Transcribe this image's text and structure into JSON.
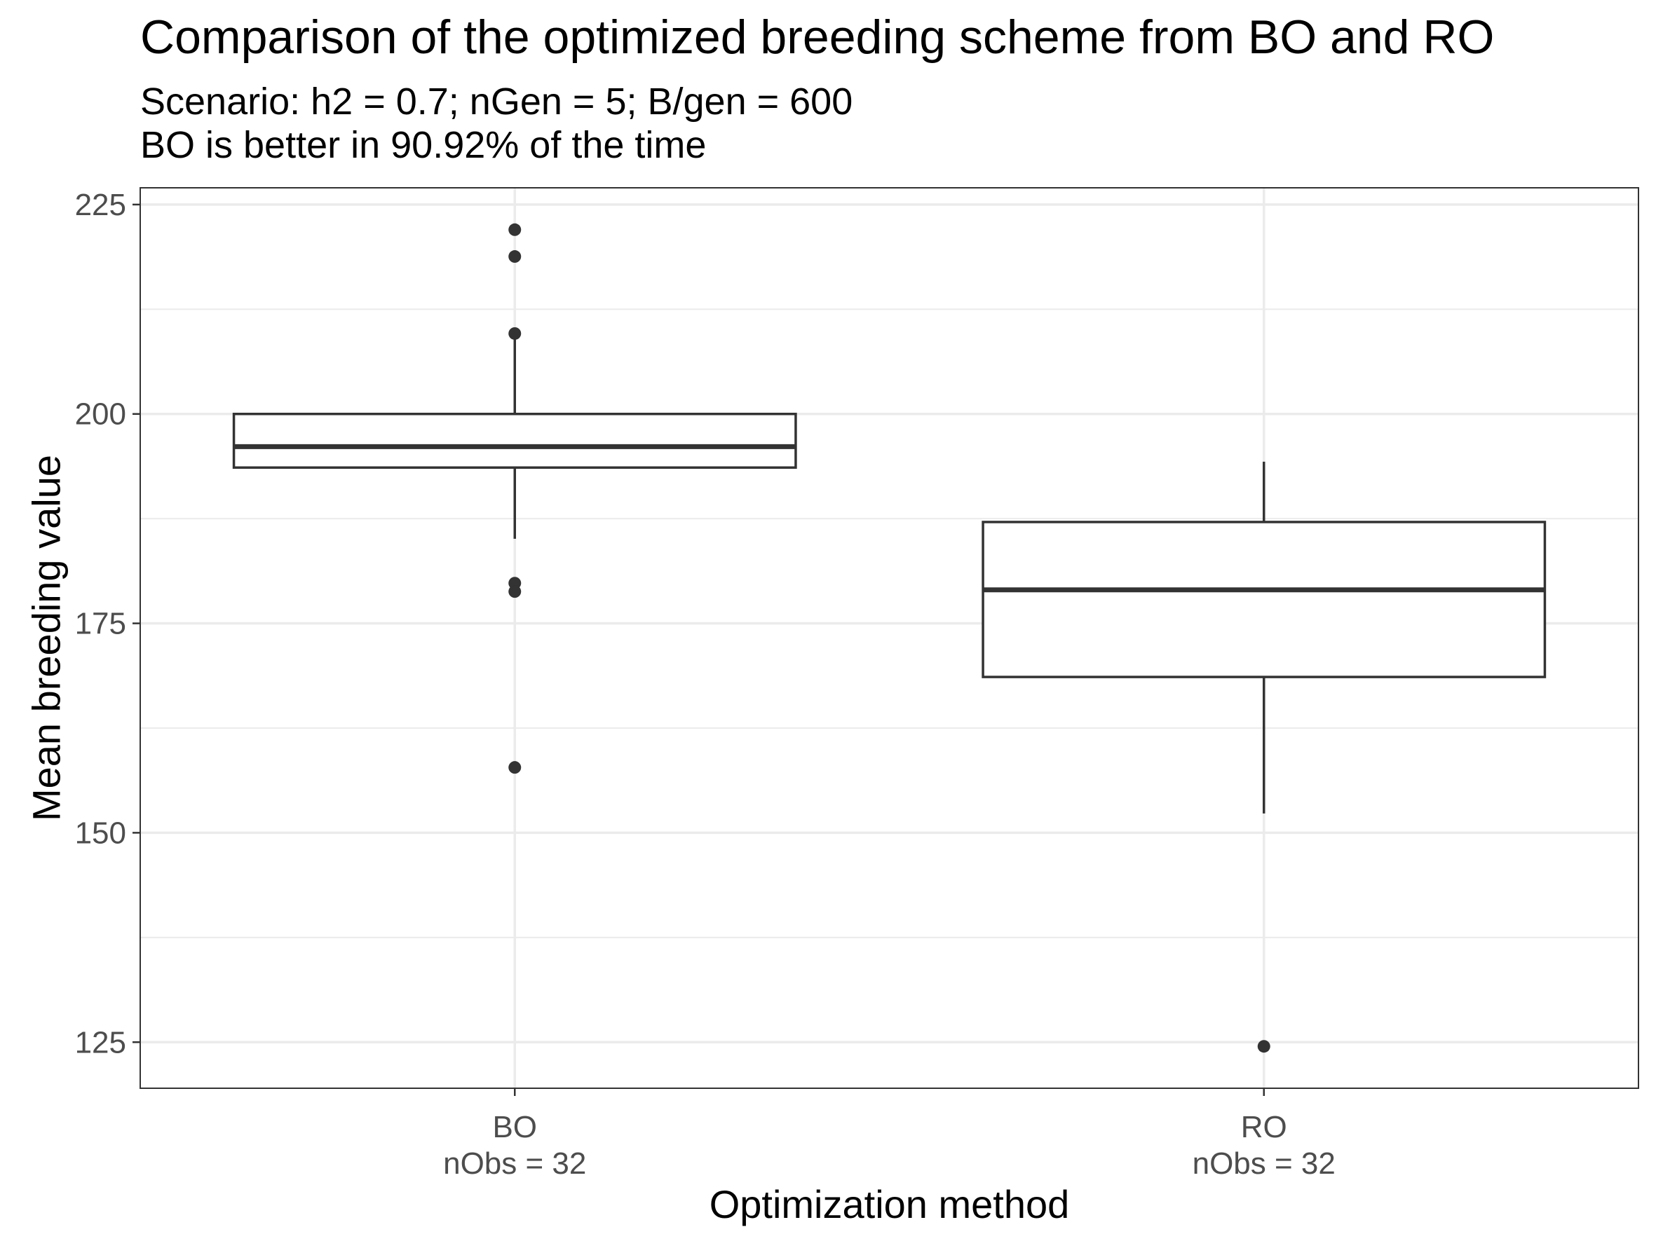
{
  "chart_data": {
    "type": "boxplot",
    "title": "Comparison of the optimized breeding scheme from BO and RO",
    "subtitle_lines": [
      "Scenario: h2 = 0.7; nGen = 5; B/gen = 600",
      "BO is better in 90.92% of the time"
    ],
    "xlabel": "Optimization method",
    "ylabel": "Mean breeding value",
    "ylim": [
      119.5,
      227
    ],
    "yticks": [
      125,
      150,
      175,
      200,
      225
    ],
    "grid": true,
    "groups": [
      {
        "name": "BO",
        "count_label": "nObs = 32",
        "whisker_low": 185.1,
        "q1": 193.6,
        "median": 196.1,
        "q3": 200.0,
        "whisker_high": 209.6,
        "outliers": [
          222.0,
          218.8,
          209.6,
          179.8,
          178.8,
          157.8
        ]
      },
      {
        "name": "RO",
        "count_label": "nObs = 32",
        "whisker_low": 152.3,
        "q1": 168.6,
        "median": 179.0,
        "q3": 187.1,
        "whisker_high": 194.3,
        "outliers": [
          124.5
        ]
      }
    ],
    "colors": {
      "box_stroke": "#333333",
      "outlier": "#333333",
      "grid": "#ebebeb",
      "panel_border": "#333333"
    }
  }
}
